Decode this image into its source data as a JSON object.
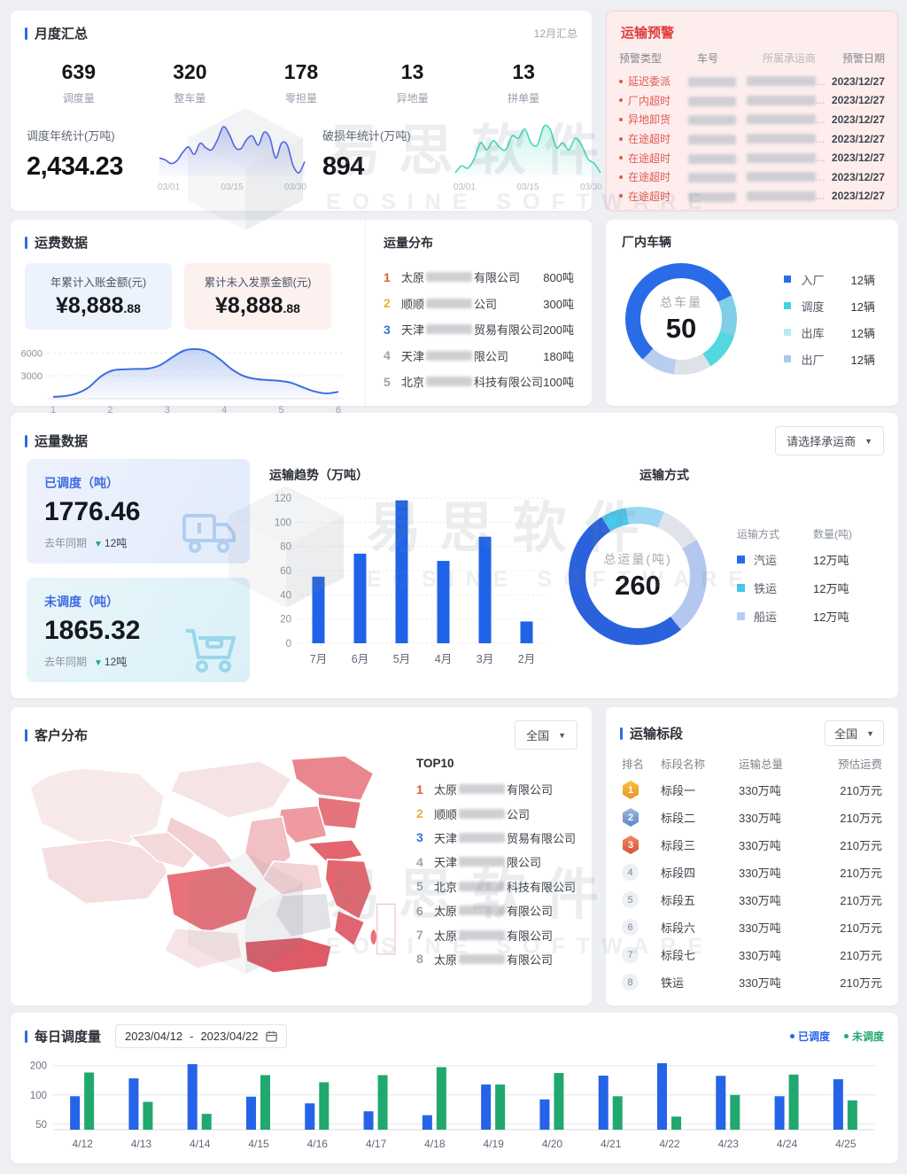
{
  "icons": {
    "caret_down": "▼",
    "triangle_down": "▼"
  },
  "colors": {
    "accent": "#2e6be6",
    "alert_red": "#e03c3c",
    "alert_row": "#e05a50",
    "bar_blue": "#1f63e8",
    "daily_blue": "#2563e8",
    "daily_green": "#21a86f",
    "rank1": "#e25a3c",
    "rank2": "#e4b13a",
    "rank3": "#3a6fe0",
    "rank_default": "#9aa3ad"
  },
  "watermark": {
    "cn": "易思软件",
    "en": "EOSINE SOFTWARE"
  },
  "monthly_summary": {
    "title": "月度汇总",
    "period": "12月汇总",
    "stats": [
      {
        "value": "639",
        "label": "调度量"
      },
      {
        "value": "320",
        "label": "整车量"
      },
      {
        "value": "178",
        "label": "零担量"
      },
      {
        "value": "13",
        "label": "异地量"
      },
      {
        "value": "13",
        "label": "拼单量"
      }
    ],
    "year_left": {
      "label": "调度年统计(万吨)",
      "value": "2,434.23"
    },
    "year_right": {
      "label": "破损年统计(万吨)",
      "value": "894"
    }
  },
  "transport_alert": {
    "title": "运输预警",
    "columns": [
      "预警类型",
      "车号",
      "所属承运商",
      "预警日期"
    ],
    "ellipsis": "...",
    "rows": [
      {
        "type": "延迟委派",
        "date": "2023/12/27"
      },
      {
        "type": "厂内超时",
        "date": "2023/12/27"
      },
      {
        "type": "异地卸货",
        "date": "2023/12/27"
      },
      {
        "type": "在途超时",
        "date": "2023/12/27"
      },
      {
        "type": "在途超时",
        "date": "2023/12/27"
      },
      {
        "type": "在途超时",
        "date": "2023/12/27"
      },
      {
        "type": "在途超时",
        "date": "2023/12/27"
      }
    ]
  },
  "freight": {
    "title": "运费数据",
    "cards": [
      {
        "label": "年累计入账金额(元)",
        "value": "¥8,888",
        "decimals": ".88"
      },
      {
        "label": "累计未入发票金额(元)",
        "value": "¥8,888",
        "decimals": ".88"
      }
    ]
  },
  "volume_dist": {
    "title": "运量分布",
    "items": [
      {
        "rank": "1",
        "prefix": "太原",
        "suffix": "有限公司",
        "value": "800吨"
      },
      {
        "rank": "2",
        "prefix": "顺顺",
        "suffix": "公司",
        "value": "300吨"
      },
      {
        "rank": "3",
        "prefix": "天津",
        "suffix": "贸易有限公司",
        "value": "200吨"
      },
      {
        "rank": "4",
        "prefix": "天津",
        "suffix": "限公司",
        "value": "180吨"
      },
      {
        "rank": "5",
        "prefix": "北京",
        "suffix": "科技有限公司",
        "value": "100吨"
      }
    ]
  },
  "factory_vehicles": {
    "title": "厂内车辆",
    "center_label": "总车量",
    "center_value": "50",
    "legend": [
      {
        "label": "入厂",
        "value": "12辆",
        "color": "#2a6ce8"
      },
      {
        "label": "调度",
        "value": "12辆",
        "color": "#45d3dd"
      },
      {
        "label": "出库",
        "value": "12辆",
        "color": "#b5ecf0"
      },
      {
        "label": "出厂",
        "value": "12辆",
        "color": "#a9c8ef"
      }
    ]
  },
  "volume_data": {
    "title": "运量数据",
    "dropdown": "请选择承运商",
    "cards": [
      {
        "label": "已调度（吨）",
        "value": "1776.46",
        "compare": "去年同期",
        "delta": "12吨"
      },
      {
        "label": "未调度（吨）",
        "value": "1865.32",
        "compare": "去年同期",
        "delta": "12吨"
      }
    ],
    "trend_title": "运输趋势（万吨）",
    "mode": {
      "title": "运输方式",
      "center_label": "总运量(吨)",
      "center_value": "260",
      "headers": [
        "运输方式",
        "数量(吨)"
      ],
      "legend": [
        {
          "label": "汽运",
          "value": "12万吨",
          "color": "#2a6ce8"
        },
        {
          "label": "铁运",
          "value": "12万吨",
          "color": "#45c8ee"
        },
        {
          "label": "船运",
          "value": "12万吨",
          "color": "#b9cdf1"
        }
      ]
    }
  },
  "customer_dist": {
    "title": "客户分布",
    "dropdown": "全国",
    "list_title": "TOP10",
    "items": [
      {
        "rank": "1",
        "prefix": "太原",
        "suffix": "有限公司"
      },
      {
        "rank": "2",
        "prefix": "顺顺",
        "suffix": "公司"
      },
      {
        "rank": "3",
        "prefix": "天津",
        "suffix": "贸易有限公司"
      },
      {
        "rank": "4",
        "prefix": "天津",
        "suffix": "限公司"
      },
      {
        "rank": "5",
        "prefix": "北京",
        "suffix": "科技有限公司"
      },
      {
        "rank": "6",
        "prefix": "太原",
        "suffix": "有限公司"
      },
      {
        "rank": "7",
        "prefix": "太原",
        "suffix": "有限公司"
      },
      {
        "rank": "8",
        "prefix": "太原",
        "suffix": "有限公司"
      }
    ]
  },
  "sections": {
    "title": "运输标段",
    "dropdown": "全国",
    "columns": [
      "排名",
      "标段名称",
      "运输总量",
      "预估运费"
    ],
    "rows": [
      {
        "rank": "1",
        "name": "标段一",
        "volume": "330万吨",
        "fee": "210万元"
      },
      {
        "rank": "2",
        "name": "标段二",
        "volume": "330万吨",
        "fee": "210万元"
      },
      {
        "rank": "3",
        "name": "标段三",
        "volume": "330万吨",
        "fee": "210万元"
      },
      {
        "rank": "4",
        "name": "标段四",
        "volume": "330万吨",
        "fee": "210万元"
      },
      {
        "rank": "5",
        "name": "标段五",
        "volume": "330万吨",
        "fee": "210万元"
      },
      {
        "rank": "6",
        "name": "标段六",
        "volume": "330万吨",
        "fee": "210万元"
      },
      {
        "rank": "7",
        "name": "标段七",
        "volume": "330万吨",
        "fee": "210万元"
      },
      {
        "rank": "8",
        "name": "铁运",
        "volume": "330万吨",
        "fee": "210万元"
      }
    ]
  },
  "daily": {
    "title": "每日调度量",
    "date_from": "2023/04/12",
    "range_sep": "-",
    "date_to": "2023/04/22",
    "legend": [
      {
        "label": "已调度",
        "color": "#2563e8"
      },
      {
        "label": "未调度",
        "color": "#21a86f"
      }
    ]
  },
  "chart_data": [
    {
      "id": "dispatch_year_spark",
      "type": "area",
      "title": "调度年统计(万吨)",
      "x_ticks": [
        "03/01",
        "03/15",
        "03/30"
      ],
      "color": "#4a63e6",
      "values": [
        46,
        44,
        40,
        43,
        52,
        58,
        50,
        62,
        57,
        55,
        66,
        80,
        72,
        58,
        56,
        66,
        70,
        60,
        74,
        68,
        46,
        62,
        60,
        38,
        30,
        42
      ]
    },
    {
      "id": "damage_year_spark",
      "type": "area",
      "title": "破损年统计(万吨)",
      "x_ticks": [
        "03/01",
        "03/15",
        "03/30"
      ],
      "color": "#45d6bd",
      "values": [
        40,
        46,
        44,
        52,
        66,
        60,
        68,
        62,
        60,
        72,
        70,
        78,
        66,
        64,
        80,
        78,
        62,
        66,
        60,
        70,
        64,
        52,
        48,
        40
      ]
    },
    {
      "id": "freight_monthly",
      "type": "area",
      "title": "运费数据",
      "x_ticks": [
        "1",
        "2",
        "3",
        "4",
        "5",
        "6"
      ],
      "y_ticks": [
        3000,
        6000
      ],
      "ylim": [
        0,
        7200
      ],
      "color": "#3a6fe0",
      "values": [
        250,
        350,
        700,
        1500,
        2900,
        3700,
        3850,
        3900,
        3950,
        4400,
        5400,
        6300,
        6500,
        6200,
        5200,
        3900,
        3000,
        2600,
        2450,
        2350,
        2100,
        1500,
        950,
        700,
        900
      ]
    },
    {
      "id": "factory_vehicles_donut",
      "type": "donut",
      "center_label": "总车量",
      "center_value": 50,
      "legend": [
        {
          "label": "入厂",
          "value": 12,
          "unit": "辆",
          "color": "#2a6ce8"
        },
        {
          "label": "调度",
          "value": 12,
          "unit": "辆",
          "color": "#45d3dd"
        },
        {
          "label": "出库",
          "value": 12,
          "unit": "辆",
          "color": "#b5ecf0"
        },
        {
          "label": "出厂",
          "value": 12,
          "unit": "辆",
          "color": "#a9c8ef"
        }
      ],
      "start_deg": 65,
      "segments_pct": [
        {
          "color": "#7fcfe8",
          "pct": 12
        },
        {
          "color": "#52d8de",
          "pct": 11
        },
        {
          "color": "#dde2e8",
          "pct": 11
        },
        {
          "color": "#b9cdf1",
          "pct": 10
        },
        {
          "color": "#2a6ce8",
          "pct": 56
        }
      ]
    },
    {
      "id": "transport_trend",
      "type": "bar",
      "title": "运输趋势（万吨）",
      "categories": [
        "7月",
        "6月",
        "5月",
        "4月",
        "3月",
        "2月"
      ],
      "values": [
        55,
        74,
        118,
        68,
        88,
        18
      ],
      "ylim": [
        0,
        120
      ],
      "y_step": 20,
      "color": "#1f63e8"
    },
    {
      "id": "transport_mode_donut",
      "type": "donut",
      "center_label": "总运量(吨)",
      "center_value": 260,
      "legend": [
        {
          "label": "汽运",
          "value": 12,
          "unit": "万吨",
          "color": "#2a6ce8"
        },
        {
          "label": "铁运",
          "value": 12,
          "unit": "万吨",
          "color": "#45c8ee"
        },
        {
          "label": "船运",
          "value": 12,
          "unit": "万吨",
          "color": "#b9cdf1"
        }
      ],
      "start_deg": -10,
      "segments_pct": [
        {
          "color": "#9bd7f2",
          "pct": 9
        },
        {
          "color": "#e0e4ea",
          "pct": 10
        },
        {
          "color": "#b4c7ef",
          "pct": 23
        },
        {
          "color": "#2a62dd",
          "pct": 52
        },
        {
          "color": "#49c8ee",
          "pct": 6
        }
      ]
    },
    {
      "id": "daily_dispatch",
      "type": "bar",
      "title": "每日调度量",
      "categories": [
        "4/12",
        "4/13",
        "4/14",
        "4/15",
        "4/16",
        "4/17",
        "4/18",
        "4/19",
        "4/20",
        "4/21",
        "4/22",
        "4/23",
        "4/24",
        "4/25"
      ],
      "series": [
        {
          "name": "已调度",
          "color": "#2563e8",
          "values": [
            97,
            148,
            207,
            96,
            82,
            68,
            62,
            128,
            90,
            158,
            212,
            157,
            97,
            145
          ]
        },
        {
          "name": "未调度",
          "color": "#21a86f",
          "values": [
            170,
            85,
            64,
            160,
            135,
            160,
            193,
            128,
            168,
            97,
            60,
            100,
            162,
            88
          ]
        }
      ],
      "y_ticks": [
        50,
        100,
        200
      ],
      "scale": "log"
    }
  ]
}
